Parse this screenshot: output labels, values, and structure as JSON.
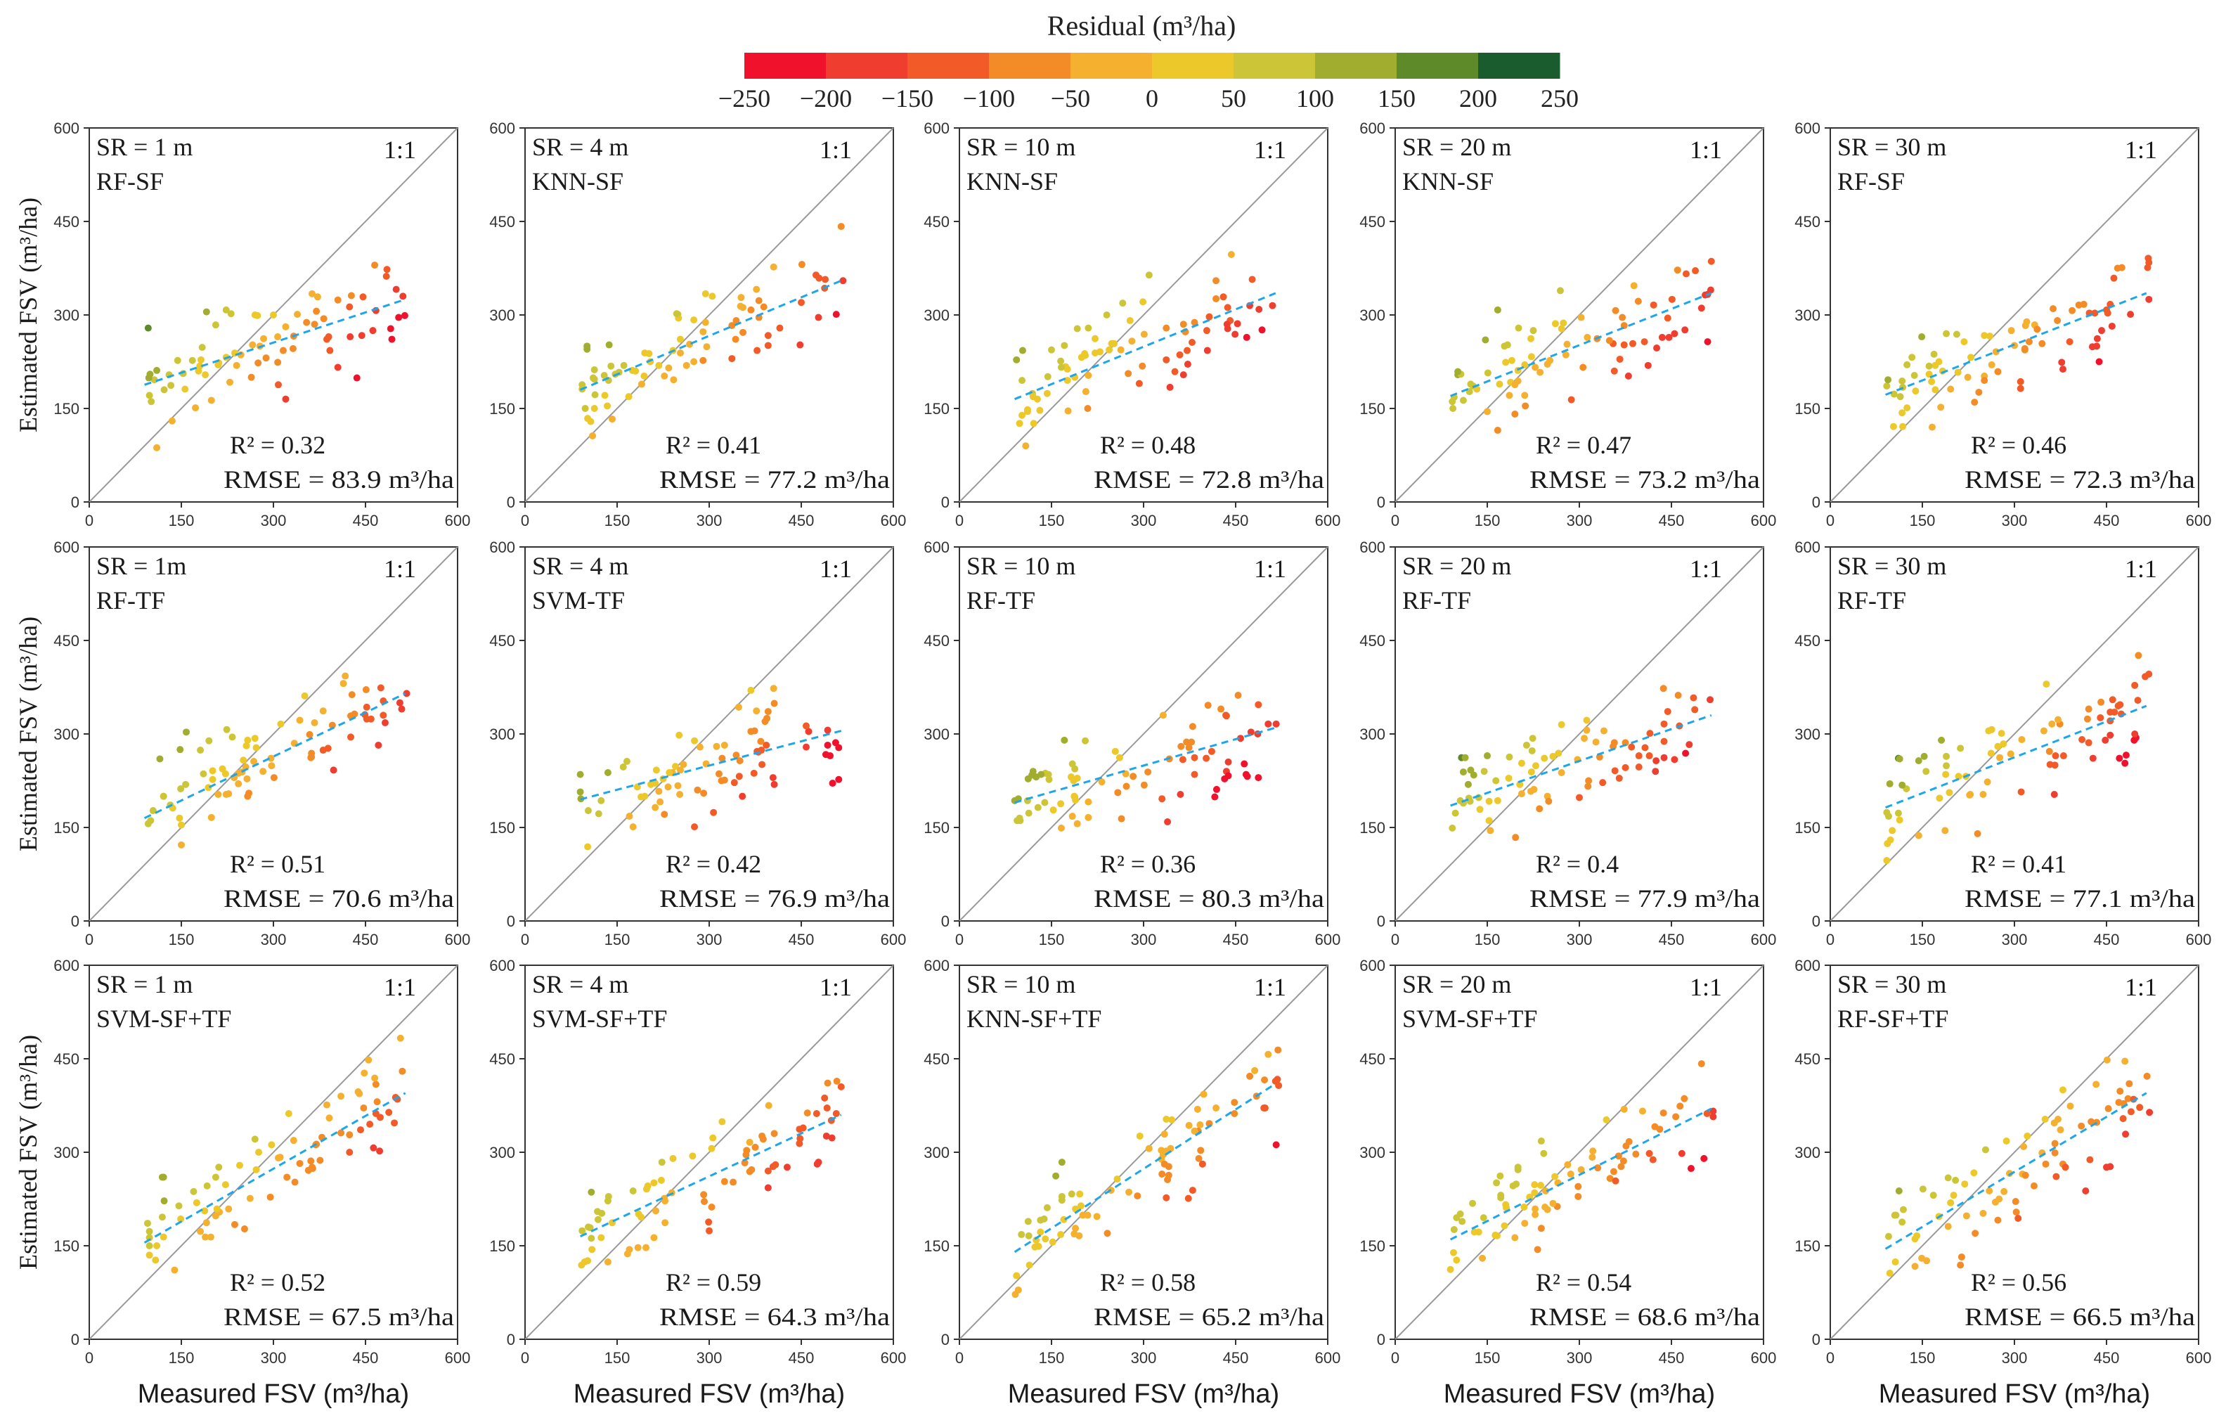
{
  "figure": {
    "y_axis_label": "Estimated FSV (m³/ha)",
    "x_axis_label": "Measured FSV (m³/ha)",
    "identity_label": "1:1"
  },
  "colorbar": {
    "title": "Residual (m³/ha)",
    "ticks": [
      "−250",
      "−200",
      "−150",
      "−100",
      "−50",
      "0",
      "50",
      "100",
      "150",
      "200",
      "250"
    ],
    "colors": [
      "#f0122c",
      "#ef3e30",
      "#f25a28",
      "#f38c27",
      "#f4b02e",
      "#ecc82a",
      "#cdc538",
      "#a0ad2e",
      "#5f8a29",
      "#1b5c2e"
    ]
  },
  "chart_data": [
    {
      "type": "scatter",
      "row": 0,
      "col": 0,
      "title": "SR = 1 m",
      "model": "RF-SF",
      "r2_label": "R² = 0.32",
      "rmse_label": "RMSE = 83.9 m³/ha",
      "fit": [
        [
          90,
          188
        ],
        [
          515,
          325
        ]
      ],
      "xlim": [
        0,
        600
      ],
      "ylim": [
        0,
        600
      ],
      "xticks": [
        0,
        150,
        300,
        450,
        600
      ],
      "yticks": [
        0,
        150,
        300,
        450,
        600
      ],
      "seed": 11,
      "points": []
    },
    {
      "type": "scatter",
      "row": 0,
      "col": 1,
      "title": "SR = 4 m",
      "model": "KNN-SF",
      "r2_label": "R² = 0.41",
      "rmse_label": "RMSE = 77.2 m³/ha",
      "fit": [
        [
          90,
          180
        ],
        [
          515,
          355
        ]
      ],
      "xlim": [
        0,
        600
      ],
      "ylim": [
        0,
        600
      ],
      "xticks": [
        0,
        150,
        300,
        450,
        600
      ],
      "yticks": [
        0,
        150,
        300,
        450,
        600
      ],
      "seed": 23,
      "points": []
    },
    {
      "type": "scatter",
      "row": 0,
      "col": 2,
      "title": "SR = 10 m",
      "model": "KNN-SF",
      "r2_label": "R² = 0.48",
      "rmse_label": "RMSE = 72.8 m³/ha",
      "fit": [
        [
          90,
          165
        ],
        [
          515,
          335
        ]
      ],
      "xlim": [
        0,
        600
      ],
      "ylim": [
        0,
        600
      ],
      "xticks": [
        0,
        150,
        300,
        450,
        600
      ],
      "yticks": [
        0,
        150,
        300,
        450,
        600
      ],
      "seed": 37,
      "points": []
    },
    {
      "type": "scatter",
      "row": 0,
      "col": 3,
      "title": "SR = 20 m",
      "model": "KNN-SF",
      "r2_label": "R² = 0.47",
      "rmse_label": "RMSE = 73.2 m³/ha",
      "fit": [
        [
          90,
          170
        ],
        [
          515,
          335
        ]
      ],
      "xlim": [
        0,
        600
      ],
      "ylim": [
        0,
        600
      ],
      "xticks": [
        0,
        150,
        300,
        450,
        600
      ],
      "yticks": [
        0,
        150,
        300,
        450,
        600
      ],
      "seed": 41,
      "points": []
    },
    {
      "type": "scatter",
      "row": 0,
      "col": 4,
      "title": "SR = 30 m",
      "model": "RF-SF",
      "r2_label": "R² = 0.46",
      "rmse_label": "RMSE = 72.3 m³/ha",
      "fit": [
        [
          90,
          172
        ],
        [
          515,
          335
        ]
      ],
      "xlim": [
        0,
        600
      ],
      "ylim": [
        0,
        600
      ],
      "xticks": [
        0,
        150,
        300,
        450,
        600
      ],
      "yticks": [
        0,
        150,
        300,
        450,
        600
      ],
      "seed": 53,
      "points": []
    },
    {
      "type": "scatter",
      "row": 1,
      "col": 0,
      "title": "SR = 1m",
      "model": "RF-TF",
      "r2_label": "R² = 0.51",
      "rmse_label": "RMSE = 70.6 m³/ha",
      "fit": [
        [
          90,
          165
        ],
        [
          515,
          365
        ]
      ],
      "xlim": [
        0,
        600
      ],
      "ylim": [
        0,
        600
      ],
      "xticks": [
        0,
        150,
        300,
        450,
        600
      ],
      "yticks": [
        0,
        150,
        300,
        450,
        600
      ],
      "seed": 61,
      "points": []
    },
    {
      "type": "scatter",
      "row": 1,
      "col": 1,
      "title": "SR = 4 m",
      "model": "SVM-TF",
      "r2_label": "R² = 0.42",
      "rmse_label": "RMSE = 76.9 m³/ha",
      "fit": [
        [
          90,
          195
        ],
        [
          515,
          305
        ]
      ],
      "xlim": [
        0,
        600
      ],
      "ylim": [
        0,
        600
      ],
      "xticks": [
        0,
        150,
        300,
        450,
        600
      ],
      "yticks": [
        0,
        150,
        300,
        450,
        600
      ],
      "seed": 71,
      "points": []
    },
    {
      "type": "scatter",
      "row": 1,
      "col": 2,
      "title": "SR = 10 m",
      "model": "RF-TF",
      "r2_label": "R² = 0.36",
      "rmse_label": "RMSE = 80.3 m³/ha",
      "fit": [
        [
          90,
          190
        ],
        [
          515,
          310
        ]
      ],
      "xlim": [
        0,
        600
      ],
      "ylim": [
        0,
        600
      ],
      "xticks": [
        0,
        150,
        300,
        450,
        600
      ],
      "yticks": [
        0,
        150,
        300,
        450,
        600
      ],
      "seed": 79,
      "points": []
    },
    {
      "type": "scatter",
      "row": 1,
      "col": 3,
      "title": "SR = 20 m",
      "model": "RF-TF",
      "r2_label": "R² = 0.4",
      "rmse_label": "RMSE = 77.9 m³/ha",
      "fit": [
        [
          90,
          185
        ],
        [
          515,
          330
        ]
      ],
      "xlim": [
        0,
        600
      ],
      "ylim": [
        0,
        600
      ],
      "xticks": [
        0,
        150,
        300,
        450,
        600
      ],
      "yticks": [
        0,
        150,
        300,
        450,
        600
      ],
      "seed": 89,
      "points": []
    },
    {
      "type": "scatter",
      "row": 1,
      "col": 4,
      "title": "SR = 30 m",
      "model": "RF-TF",
      "r2_label": "R² = 0.41",
      "rmse_label": "RMSE = 77.1 m³/ha",
      "fit": [
        [
          90,
          182
        ],
        [
          515,
          345
        ]
      ],
      "xlim": [
        0,
        600
      ],
      "ylim": [
        0,
        600
      ],
      "xticks": [
        0,
        150,
        300,
        450,
        600
      ],
      "yticks": [
        0,
        150,
        300,
        450,
        600
      ],
      "seed": 97,
      "points": []
    },
    {
      "type": "scatter",
      "row": 2,
      "col": 0,
      "title": "SR = 1 m",
      "model": "SVM-SF+TF",
      "r2_label": "R² = 0.52",
      "rmse_label": "RMSE = 67.5 m³/ha",
      "fit": [
        [
          90,
          155
        ],
        [
          515,
          395
        ]
      ],
      "xlim": [
        0,
        600
      ],
      "ylim": [
        0,
        600
      ],
      "xticks": [
        0,
        150,
        300,
        450,
        600
      ],
      "yticks": [
        0,
        150,
        300,
        450,
        600
      ],
      "seed": 103,
      "points": []
    },
    {
      "type": "scatter",
      "row": 2,
      "col": 1,
      "title": "SR = 4 m",
      "model": "SVM-SF+TF",
      "r2_label": "R² = 0.59",
      "rmse_label": "RMSE = 64.3 m³/ha",
      "fit": [
        [
          90,
          165
        ],
        [
          515,
          360
        ]
      ],
      "xlim": [
        0,
        600
      ],
      "ylim": [
        0,
        600
      ],
      "xticks": [
        0,
        150,
        300,
        450,
        600
      ],
      "yticks": [
        0,
        150,
        300,
        450,
        600
      ],
      "seed": 109,
      "points": []
    },
    {
      "type": "scatter",
      "row": 2,
      "col": 2,
      "title": "SR = 10 m",
      "model": "KNN-SF+TF",
      "r2_label": "R² = 0.58",
      "rmse_label": "RMSE = 65.2 m³/ha",
      "fit": [
        [
          90,
          140
        ],
        [
          515,
          410
        ]
      ],
      "xlim": [
        0,
        600
      ],
      "ylim": [
        0,
        600
      ],
      "xticks": [
        0,
        150,
        300,
        450,
        600
      ],
      "yticks": [
        0,
        150,
        300,
        450,
        600
      ],
      "seed": 113,
      "points": []
    },
    {
      "type": "scatter",
      "row": 2,
      "col": 3,
      "title": "SR = 20 m",
      "model": "SVM-SF+TF",
      "r2_label": "R² = 0.54",
      "rmse_label": "RMSE = 68.6 m³/ha",
      "fit": [
        [
          90,
          160
        ],
        [
          515,
          370
        ]
      ],
      "xlim": [
        0,
        600
      ],
      "ylim": [
        0,
        600
      ],
      "xticks": [
        0,
        150,
        300,
        450,
        600
      ],
      "yticks": [
        0,
        150,
        300,
        450,
        600
      ],
      "seed": 127,
      "points": []
    },
    {
      "type": "scatter",
      "row": 2,
      "col": 4,
      "title": "SR = 30 m",
      "model": "RF-SF+TF",
      "r2_label": "R² = 0.56",
      "rmse_label": "RMSE = 66.5 m³/ha",
      "fit": [
        [
          90,
          145
        ],
        [
          515,
          395
        ]
      ],
      "xlim": [
        0,
        600
      ],
      "ylim": [
        0,
        600
      ],
      "xticks": [
        0,
        150,
        300,
        450,
        600
      ],
      "yticks": [
        0,
        150,
        300,
        450,
        600
      ],
      "seed": 131,
      "points": []
    }
  ]
}
